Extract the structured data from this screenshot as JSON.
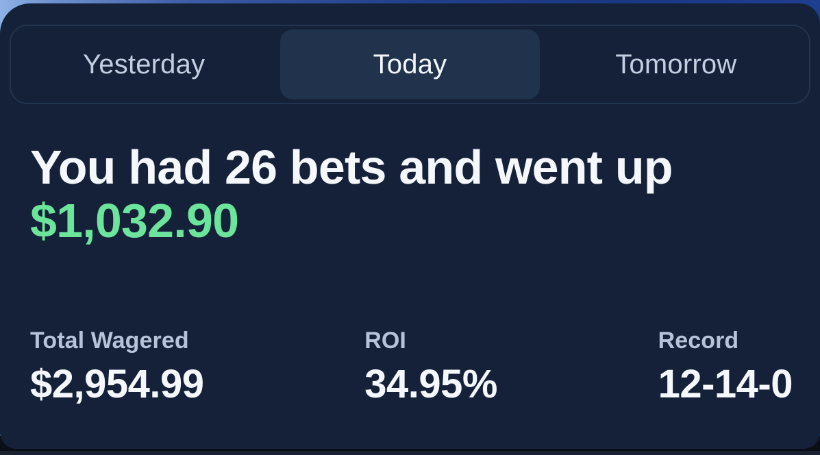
{
  "tabs": {
    "items": [
      {
        "label": "Yesterday",
        "selected": false
      },
      {
        "label": "Today",
        "selected": true
      },
      {
        "label": "Tomorrow",
        "selected": false
      }
    ]
  },
  "summary": {
    "headline": "You had 26 bets and went up",
    "profit_amount": "$1,032.90",
    "bet_count": "26"
  },
  "stats": [
    {
      "label": "Total Wagered",
      "value": "$2,954.99"
    },
    {
      "label": "ROI",
      "value": "34.95%"
    },
    {
      "label": "Record",
      "value": "12-14-0"
    }
  ],
  "colors": {
    "card_bg": "#142138",
    "selected_tab_bg": "#20324C",
    "tab_border": "#233450",
    "inactive_tab_text": "#C3CEE0",
    "text_primary": "#F4F7FB",
    "label_muted": "#B7C3D9",
    "positive_green": "#6CE49B",
    "backdrop_blue_light": "#90B2E6",
    "backdrop_blue_dark": "#1A3784"
  }
}
